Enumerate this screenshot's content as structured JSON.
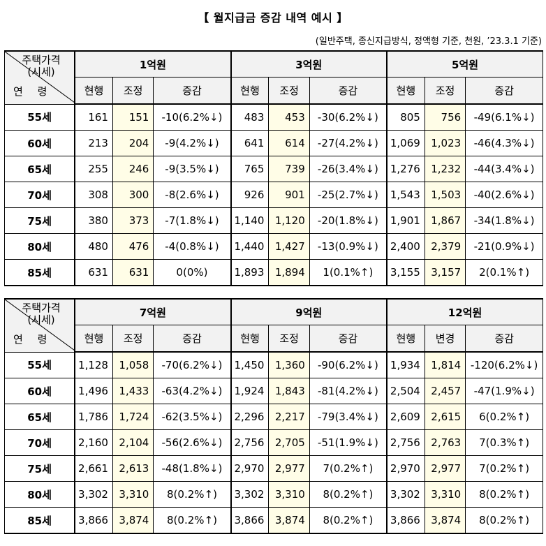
{
  "title": "【 월지급금 증감 내역 예시 】",
  "note": "(일반주택, 종신지급방식, 정액형 기준, 천원, ’23.3.1 기준)",
  "corner": {
    "price_line1": "주택가격",
    "price_line2": "(시세)",
    "age_label": "연 령"
  },
  "tables": [
    {
      "groups": [
        {
          "price": "1억원",
          "col_current": "현행",
          "col_adjusted": "조정",
          "col_change": "증감"
        },
        {
          "price": "3억원",
          "col_current": "현행",
          "col_adjusted": "조정",
          "col_change": "증감"
        },
        {
          "price": "5억원",
          "col_current": "현행",
          "col_adjusted": "조정",
          "col_change": "증감"
        }
      ],
      "rows": [
        {
          "age": "55세",
          "cells": [
            [
              "161",
              "151",
              "-10(6.2%↓)"
            ],
            [
              "483",
              "453",
              "-30(6.2%↓)"
            ],
            [
              "805",
              "756",
              "-49(6.1%↓)"
            ]
          ]
        },
        {
          "age": "60세",
          "cells": [
            [
              "213",
              "204",
              "-9(4.2%↓)"
            ],
            [
              "641",
              "614",
              "-27(4.2%↓)"
            ],
            [
              "1,069",
              "1,023",
              "-46(4.3%↓)"
            ]
          ]
        },
        {
          "age": "65세",
          "cells": [
            [
              "255",
              "246",
              "-9(3.5%↓)"
            ],
            [
              "765",
              "739",
              "-26(3.4%↓)"
            ],
            [
              "1,276",
              "1,232",
              "-44(3.4%↓)"
            ]
          ]
        },
        {
          "age": "70세",
          "cells": [
            [
              "308",
              "300",
              "-8(2.6%↓)"
            ],
            [
              "926",
              "901",
              "-25(2.7%↓)"
            ],
            [
              "1,543",
              "1,503",
              "-40(2.6%↓)"
            ]
          ]
        },
        {
          "age": "75세",
          "cells": [
            [
              "380",
              "373",
              "-7(1.8%↓)"
            ],
            [
              "1,140",
              "1,120",
              "-20(1.8%↓)"
            ],
            [
              "1,901",
              "1,867",
              "-34(1.8%↓)"
            ]
          ]
        },
        {
          "age": "80세",
          "cells": [
            [
              "480",
              "476",
              "-4(0.8%↓)"
            ],
            [
              "1,440",
              "1,427",
              "-13(0.9%↓)"
            ],
            [
              "2,400",
              "2,379",
              "-21(0.9%↓)"
            ]
          ]
        },
        {
          "age": "85세",
          "cells": [
            [
              "631",
              "631",
              "0(0%)"
            ],
            [
              "1,893",
              "1,894",
              "1(0.1%↑)"
            ],
            [
              "3,155",
              "3,157",
              "2(0.1%↑)"
            ]
          ]
        }
      ]
    },
    {
      "groups": [
        {
          "price": "7억원",
          "col_current": "현행",
          "col_adjusted": "조정",
          "col_change": "증감"
        },
        {
          "price": "9억원",
          "col_current": "현행",
          "col_adjusted": "조정",
          "col_change": "증감"
        },
        {
          "price": "12억원",
          "col_current": "현행",
          "col_adjusted": "변경",
          "col_change": "증감"
        }
      ],
      "rows": [
        {
          "age": "55세",
          "cells": [
            [
              "1,128",
              "1,058",
              "-70(6.2%↓)"
            ],
            [
              "1,450",
              "1,360",
              "-90(6.2%↓)"
            ],
            [
              "1,934",
              "1,814",
              "-120(6.2%↓)"
            ]
          ]
        },
        {
          "age": "60세",
          "cells": [
            [
              "1,496",
              "1,433",
              "-63(4.2%↓)"
            ],
            [
              "1,924",
              "1,843",
              "-81(4.2%↓)"
            ],
            [
              "2,504",
              "2,457",
              "-47(1.9%↓)"
            ]
          ]
        },
        {
          "age": "65세",
          "cells": [
            [
              "1,786",
              "1,724",
              "-62(3.5%↓)"
            ],
            [
              "2,296",
              "2,217",
              "-79(3.4%↓)"
            ],
            [
              "2,609",
              "2,615",
              "6(0.2%↑)"
            ]
          ]
        },
        {
          "age": "70세",
          "cells": [
            [
              "2,160",
              "2,104",
              "-56(2.6%↓)"
            ],
            [
              "2,756",
              "2,705",
              "-51(1.9%↓)"
            ],
            [
              "2,756",
              "2,763",
              "7(0.3%↑)"
            ]
          ]
        },
        {
          "age": "75세",
          "cells": [
            [
              "2,661",
              "2,613",
              "-48(1.8%↓)"
            ],
            [
              "2,970",
              "2,977",
              "7(0.2%↑)"
            ],
            [
              "2,970",
              "2,977",
              "7(0.2%↑)"
            ]
          ]
        },
        {
          "age": "80세",
          "cells": [
            [
              "3,302",
              "3,310",
              "8(0.2%↑)"
            ],
            [
              "3,302",
              "3,310",
              "8(0.2%↑)"
            ],
            [
              "3,302",
              "3,310",
              "8(0.2%↑)"
            ]
          ]
        },
        {
          "age": "85세",
          "cells": [
            [
              "3,866",
              "3,874",
              "8(0.2%↑)"
            ],
            [
              "3,866",
              "3,874",
              "8(0.2%↑)"
            ],
            [
              "3,866",
              "3,874",
              "8(0.2%↑)"
            ]
          ]
        }
      ]
    }
  ]
}
